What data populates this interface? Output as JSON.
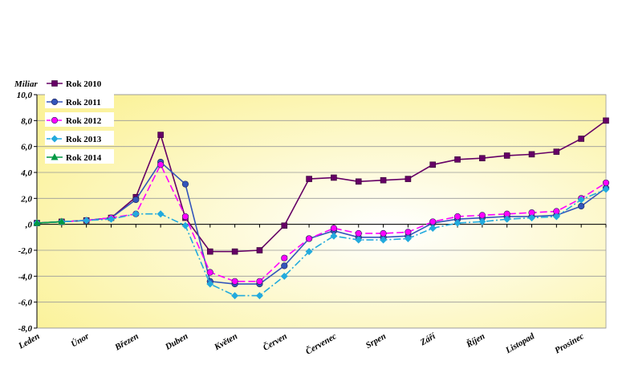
{
  "chart_data": {
    "type": "line",
    "ylabel": "Miliar",
    "ylim": [
      -8,
      10
    ],
    "yticks": [
      "10,0",
      "8,0",
      "6,0",
      "4,0",
      "2,0",
      ",0",
      "-2,0",
      "-4,0",
      "-6,0",
      "-8,0"
    ],
    "ytick_values": [
      10,
      8,
      6,
      4,
      2,
      0,
      -2,
      -4,
      -6,
      -8
    ],
    "month_labels": [
      "Leden",
      "Únor",
      "Březen",
      "Duben",
      "Květen",
      "Červen",
      "Červenec",
      "Srpen",
      "Září",
      "Říjen",
      "Listopad",
      "Prosinec"
    ],
    "x_points": 24,
    "grid": true,
    "legend_position": "top-left",
    "plot_background": "#fdf7a6",
    "series": [
      {
        "name": "Rok 2010",
        "color": "#660066",
        "marker": "square",
        "dash": "solid",
        "values": [
          0.1,
          0.2,
          0.3,
          0.5,
          2.1,
          6.9,
          0.5,
          -2.1,
          -2.1,
          -2.0,
          -0.1,
          3.5,
          3.6,
          3.3,
          3.4,
          3.5,
          4.6,
          5.0,
          5.1,
          5.3,
          5.4,
          5.6,
          6.6,
          8.0
        ]
      },
      {
        "name": "Rok 2011",
        "color": "#3355bb",
        "marker": "circle",
        "dash": "solid",
        "values": [
          0.1,
          0.2,
          0.3,
          0.5,
          1.9,
          4.8,
          3.1,
          -4.4,
          -4.6,
          -4.6,
          -3.2,
          -1.1,
          -0.5,
          -1.0,
          -1.0,
          -0.9,
          0.1,
          0.4,
          0.5,
          0.6,
          0.6,
          0.7,
          1.4,
          2.8
        ]
      },
      {
        "name": "Rok 2012",
        "color": "#ff00ff",
        "marker": "circle",
        "dash": "longdash",
        "values": [
          0.1,
          0.2,
          0.3,
          0.5,
          0.8,
          4.6,
          0.6,
          -3.7,
          -4.4,
          -4.4,
          -2.6,
          -1.1,
          -0.3,
          -0.7,
          -0.7,
          -0.6,
          0.2,
          0.6,
          0.7,
          0.8,
          0.9,
          1.0,
          2.0,
          3.2
        ]
      },
      {
        "name": "Rok 2013",
        "color": "#22aadd",
        "marker": "diamond",
        "dash": "dashdot",
        "values": [
          0.1,
          0.2,
          0.3,
          0.4,
          0.8,
          0.8,
          -0.1,
          -4.6,
          -5.5,
          -5.5,
          -4.0,
          -2.1,
          -0.9,
          -1.2,
          -1.2,
          -1.1,
          -0.3,
          0.1,
          0.2,
          0.4,
          0.5,
          0.6,
          1.9,
          2.7
        ]
      },
      {
        "name": "Rok 2014",
        "color": "#009944",
        "marker": "triangle",
        "dash": "solid",
        "values": [
          0.1,
          0.2,
          null,
          null,
          null,
          null,
          null,
          null,
          null,
          null,
          null,
          null,
          null,
          null,
          null,
          null,
          null,
          null,
          null,
          null,
          null,
          null,
          null,
          null
        ]
      }
    ]
  }
}
